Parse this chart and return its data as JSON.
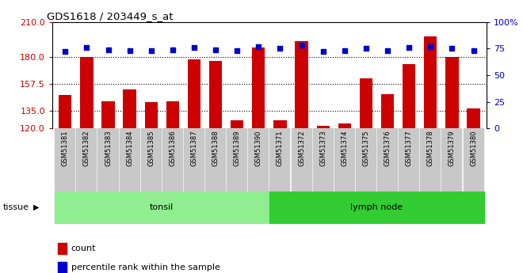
{
  "title": "GDS1618 / 203449_s_at",
  "samples": [
    "GSM51381",
    "GSM51382",
    "GSM51383",
    "GSM51384",
    "GSM51385",
    "GSM51386",
    "GSM51387",
    "GSM51388",
    "GSM51389",
    "GSM51390",
    "GSM51371",
    "GSM51372",
    "GSM51373",
    "GSM51374",
    "GSM51375",
    "GSM51376",
    "GSM51377",
    "GSM51378",
    "GSM51379",
    "GSM51380"
  ],
  "count_values_all": [
    148,
    180,
    143,
    153,
    142,
    143,
    178,
    177,
    127,
    188,
    127,
    194,
    122,
    124,
    162,
    149,
    174,
    198,
    180,
    137
  ],
  "percentile_values": [
    72,
    76,
    74,
    73,
    73,
    74,
    76,
    74,
    73,
    77,
    75,
    78,
    72,
    73,
    75,
    73,
    76,
    77,
    75,
    73
  ],
  "ylim_left": [
    120,
    210
  ],
  "ylim_right": [
    0,
    100
  ],
  "yticks_left": [
    120,
    135,
    157.5,
    180,
    210
  ],
  "yticks_right": [
    0,
    25,
    50,
    75,
    100
  ],
  "ytick_right_labels": [
    "0",
    "25",
    "50",
    "75",
    "100%"
  ],
  "bar_color": "#cc0000",
  "dot_color": "#0000cc",
  "grid_lines": [
    135,
    157.5,
    180
  ],
  "tonsil_count": 10,
  "lymphnode_count": 10,
  "tonsil_color": "#90ee90",
  "lymphnode_color": "#33cc33",
  "tissue_label": "tissue",
  "tonsil_label": "tonsil",
  "lymphnode_label": "lymph node",
  "legend_count_label": "count",
  "legend_pct_label": "percentile rank within the sample",
  "bar_color_red": "#cc0000",
  "dot_color_blue": "#0000cc",
  "xlabel_color": "#cc0000",
  "ylabel_right_color": "#0000bb"
}
